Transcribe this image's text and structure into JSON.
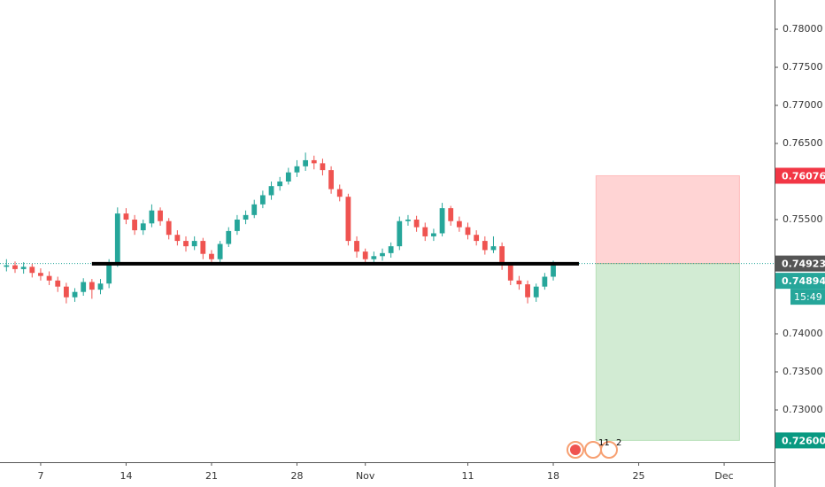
{
  "chart_data": {
    "type": "candlestick",
    "up_color": "#26a69a",
    "down_color": "#ef5350",
    "x": [
      -2,
      -1.5,
      -1,
      -0.5,
      0,
      0.5,
      1,
      1.5,
      2,
      2.5,
      3,
      3.5,
      4,
      4.5,
      5,
      5.5,
      6,
      6.5,
      7,
      7.5,
      8,
      8.5,
      9,
      9.5,
      10,
      10.5,
      11,
      11.5,
      12,
      12.5,
      13,
      13.5,
      14,
      14.5,
      15,
      15.5,
      16,
      16.5,
      17,
      17.5,
      18,
      18.5,
      19,
      19.5,
      20,
      20.5,
      21,
      21.5,
      22,
      22.5,
      23,
      23.5,
      24,
      24.5,
      25,
      25.5,
      26,
      26.5,
      27,
      27.5,
      28,
      28.5,
      29,
      29.5,
      30
    ],
    "open": [
      0.7488,
      0.749,
      0.7485,
      0.7488,
      0.748,
      0.7476,
      0.747,
      0.7462,
      0.7448,
      0.7455,
      0.7468,
      0.7458,
      0.7466,
      0.7492,
      0.7558,
      0.755,
      0.7536,
      0.7545,
      0.7562,
      0.7548,
      0.753,
      0.7522,
      0.7515,
      0.7522,
      0.7505,
      0.7498,
      0.7518,
      0.7535,
      0.755,
      0.7556,
      0.757,
      0.7582,
      0.7594,
      0.76,
      0.7612,
      0.762,
      0.7628,
      0.7624,
      0.7615,
      0.759,
      0.758,
      0.7522,
      0.7508,
      0.7498,
      0.7502,
      0.7506,
      0.7515,
      0.7548,
      0.755,
      0.754,
      0.7528,
      0.7532,
      0.7565,
      0.7548,
      0.754,
      0.753,
      0.7522,
      0.751,
      0.7515,
      0.749,
      0.747,
      0.7465,
      0.7448,
      0.7462,
      0.7475
    ],
    "high": [
      0.7498,
      0.7495,
      0.7494,
      0.7492,
      0.7486,
      0.7482,
      0.7475,
      0.7467,
      0.746,
      0.7473,
      0.7472,
      0.7472,
      0.7498,
      0.7566,
      0.7565,
      0.7556,
      0.755,
      0.757,
      0.7566,
      0.7552,
      0.7536,
      0.7528,
      0.7528,
      0.7526,
      0.751,
      0.7522,
      0.754,
      0.7556,
      0.7562,
      0.7576,
      0.7588,
      0.76,
      0.7606,
      0.7618,
      0.7628,
      0.7638,
      0.7634,
      0.763,
      0.762,
      0.7596,
      0.7584,
      0.7528,
      0.7512,
      0.7508,
      0.7512,
      0.752,
      0.7554,
      0.7556,
      0.7555,
      0.7546,
      0.7538,
      0.7572,
      0.7568,
      0.7554,
      0.7546,
      0.7536,
      0.7528,
      0.7528,
      0.752,
      0.7494,
      0.7476,
      0.747,
      0.7466,
      0.748,
      0.7496
    ],
    "low": [
      0.7482,
      0.748,
      0.7479,
      0.7474,
      0.747,
      0.7464,
      0.7455,
      0.744,
      0.7442,
      0.745,
      0.7446,
      0.7452,
      0.746,
      0.7488,
      0.7544,
      0.753,
      0.753,
      0.754,
      0.7542,
      0.7524,
      0.7516,
      0.7508,
      0.751,
      0.7498,
      0.749,
      0.7494,
      0.7514,
      0.753,
      0.7544,
      0.7552,
      0.7565,
      0.7576,
      0.7588,
      0.7596,
      0.7606,
      0.7614,
      0.7616,
      0.7608,
      0.7584,
      0.7574,
      0.7516,
      0.75,
      0.749,
      0.7492,
      0.7496,
      0.75,
      0.751,
      0.7542,
      0.7534,
      0.7522,
      0.7522,
      0.7528,
      0.7542,
      0.7534,
      0.7524,
      0.7516,
      0.7504,
      0.7506,
      0.7484,
      0.7464,
      0.7458,
      0.744,
      0.7442,
      0.7458,
      0.747
    ],
    "close": [
      0.749,
      0.7485,
      0.7488,
      0.748,
      0.7476,
      0.747,
      0.7462,
      0.7448,
      0.7455,
      0.7468,
      0.7458,
      0.7466,
      0.7492,
      0.7558,
      0.755,
      0.7536,
      0.7545,
      0.7562,
      0.7548,
      0.753,
      0.7522,
      0.7515,
      0.7522,
      0.7505,
      0.7498,
      0.7518,
      0.7535,
      0.755,
      0.7556,
      0.757,
      0.7582,
      0.7594,
      0.76,
      0.7612,
      0.762,
      0.7628,
      0.7624,
      0.7615,
      0.759,
      0.758,
      0.7522,
      0.7508,
      0.7498,
      0.7502,
      0.7506,
      0.7515,
      0.7548,
      0.755,
      0.754,
      0.7528,
      0.7532,
      0.7565,
      0.7548,
      0.754,
      0.753,
      0.7522,
      0.751,
      0.7515,
      0.749,
      0.747,
      0.7465,
      0.7448,
      0.7462,
      0.7475,
      0.749
    ],
    "xlim": [
      -2.38,
      42.95
    ],
    "ylim": [
      0.72314,
      0.78384
    ],
    "xticks": [
      {
        "value": 0,
        "label": "7"
      },
      {
        "value": 5,
        "label": "14"
      },
      {
        "value": 10,
        "label": "21"
      },
      {
        "value": 15,
        "label": "28"
      },
      {
        "value": 19,
        "label": "Nov"
      },
      {
        "value": 25,
        "label": "11"
      },
      {
        "value": 30,
        "label": "18"
      },
      {
        "value": 35,
        "label": "25"
      },
      {
        "value": 40,
        "label": "Dec"
      }
    ],
    "yticks": [
      {
        "value": 0.73,
        "label": "0.73000"
      },
      {
        "value": 0.735,
        "label": "0.73500"
      },
      {
        "value": 0.74,
        "label": "0.74000"
      },
      {
        "value": 0.755,
        "label": "0.75500"
      },
      {
        "value": 0.765,
        "label": "0.76500"
      },
      {
        "value": 0.77,
        "label": "0.77000"
      },
      {
        "value": 0.775,
        "label": "0.77500"
      },
      {
        "value": 0.78,
        "label": "0.78000"
      }
    ],
    "support_line": {
      "value": 0.7492,
      "x_start": 3,
      "x_end": 31.5
    },
    "position": {
      "entry": 0.74923,
      "stop": 0.76076,
      "target": {
        "value": 0.726,
        "label": "0.72600"
      },
      "x_start": 32.5,
      "x_end": 40.9
    },
    "last_price": 0.74894,
    "countdown": "15:49",
    "event_labels": [
      "11",
      "2"
    ]
  }
}
